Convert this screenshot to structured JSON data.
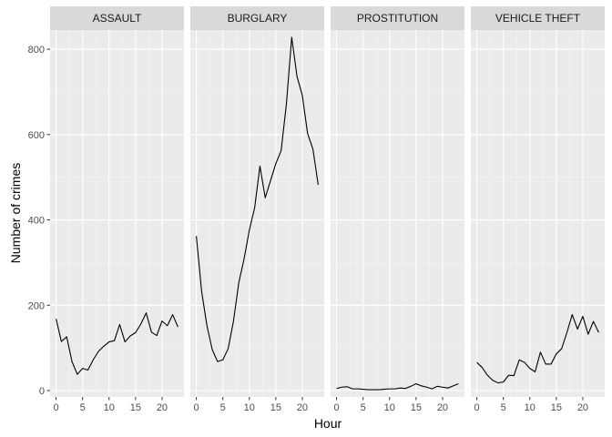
{
  "chart_data": {
    "type": "line",
    "xlabel": "Hour",
    "ylabel": "Number of crimes",
    "xlim": [
      0,
      23
    ],
    "ylim": [
      0,
      830
    ],
    "x_ticks": [
      0,
      5,
      10,
      15,
      20
    ],
    "y_ticks": [
      0,
      200,
      400,
      600,
      800
    ],
    "x_tick_labels": [
      "0",
      "5",
      "10",
      "15",
      "20"
    ],
    "y_tick_labels": [
      "0",
      "200",
      "400",
      "600",
      "800"
    ],
    "grid": true,
    "facets": [
      {
        "name": "ASSAULT",
        "x": [
          0,
          1,
          2,
          3,
          4,
          5,
          6,
          7,
          8,
          9,
          10,
          11,
          12,
          13,
          14,
          15,
          16,
          17,
          18,
          19,
          20,
          21,
          22,
          23
        ],
        "y": [
          168,
          115,
          126,
          68,
          38,
          52,
          48,
          72,
          92,
          104,
          114,
          117,
          155,
          114,
          128,
          136,
          156,
          182,
          137,
          129,
          163,
          152,
          178,
          149
        ]
      },
      {
        "name": "BURGLARY",
        "x": [
          0,
          1,
          2,
          3,
          4,
          5,
          6,
          7,
          8,
          9,
          10,
          11,
          12,
          13,
          14,
          15,
          16,
          17,
          18,
          19,
          20,
          21,
          22,
          23
        ],
        "y": [
          362,
          232,
          152,
          96,
          68,
          72,
          98,
          162,
          252,
          308,
          376,
          428,
          526,
          452,
          492,
          532,
          562,
          672,
          828,
          736,
          692,
          602,
          566,
          482
        ]
      },
      {
        "name": "PROSTITUTION",
        "x": [
          0,
          1,
          2,
          3,
          4,
          5,
          6,
          7,
          8,
          9,
          10,
          11,
          12,
          13,
          14,
          15,
          16,
          17,
          18,
          19,
          20,
          21,
          22,
          23
        ],
        "y": [
          5,
          8,
          9,
          4,
          4,
          3,
          2,
          2,
          2,
          3,
          4,
          4,
          6,
          5,
          10,
          16,
          11,
          8,
          4,
          10,
          8,
          6,
          11,
          16
        ]
      },
      {
        "name": "VEHICLE THEFT",
        "x": [
          0,
          1,
          2,
          3,
          4,
          5,
          6,
          7,
          8,
          9,
          10,
          11,
          12,
          13,
          14,
          15,
          16,
          17,
          18,
          19,
          20,
          21,
          22,
          23
        ],
        "y": [
          66,
          54,
          36,
          24,
          18,
          20,
          36,
          35,
          72,
          66,
          52,
          44,
          90,
          62,
          62,
          86,
          98,
          136,
          178,
          144,
          174,
          132,
          162,
          136
        ]
      }
    ]
  }
}
